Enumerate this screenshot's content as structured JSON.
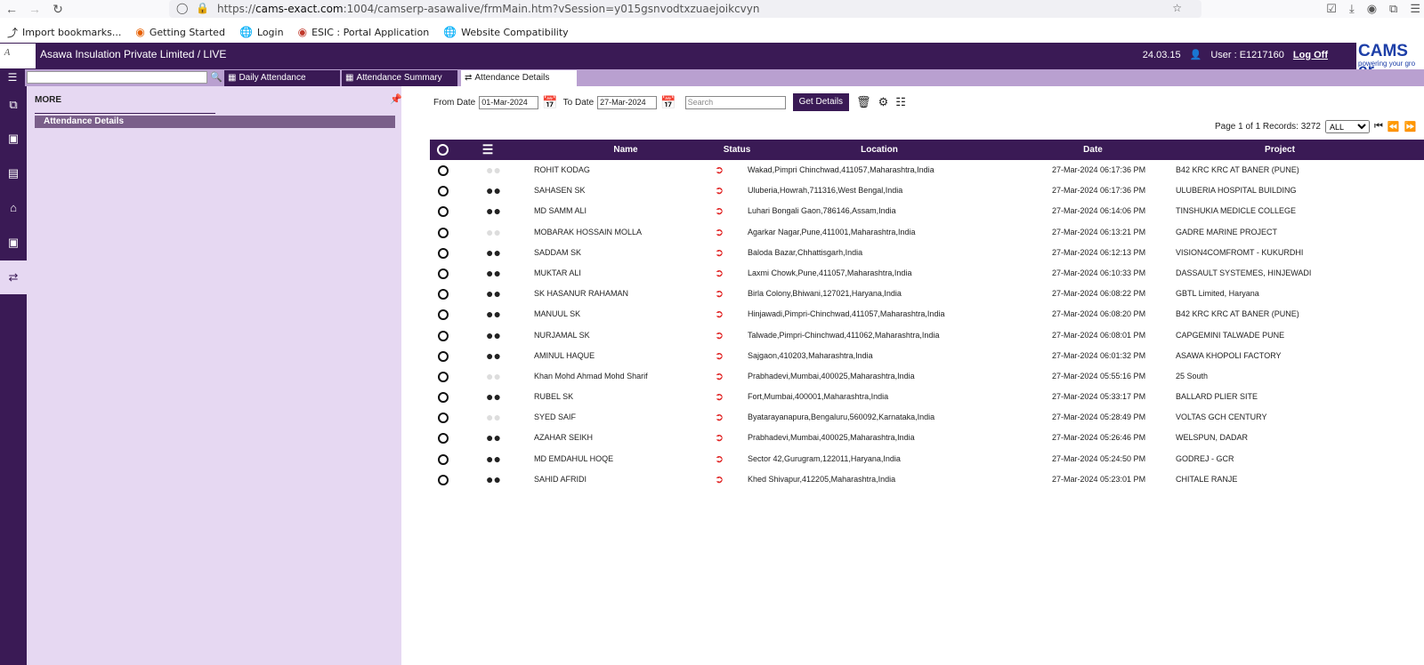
{
  "browser": {
    "url_prefix": "https://",
    "url_host": "cams-exact.com",
    "url_rest": ":1004/camserp-asawalive/frmMain.htm?vSession=y015gsnvodtxzuaejoikcvyn",
    "bookmarks": [
      "Import bookmarks...",
      "Getting Started",
      "Login",
      "ESIC : Portal Application",
      "Website Compatibility"
    ]
  },
  "header": {
    "company": "Asawa Insulation Private Limited  / LIVE",
    "version": "24.03.15",
    "user": "User : E1217160",
    "logoff": "Log Off",
    "brand": "CAMS er",
    "tagline": "powering your gro"
  },
  "tabs": [
    {
      "label": "Daily Attendance"
    },
    {
      "label": "Attendance Summary"
    },
    {
      "label": "Attendance Details"
    }
  ],
  "sidebar": {
    "title": "MORE",
    "item": "Attendance Details"
  },
  "filters": {
    "from_label": "From Date",
    "from_value": "01-Mar-2024",
    "to_label": "To Date",
    "to_value": "27-Mar-2024",
    "search_placeholder": "Search",
    "get_details": "Get Details"
  },
  "pager": {
    "text": "Page 1 of 1 Records: 3272",
    "size_option": "ALL"
  },
  "table": {
    "columns": [
      "Name",
      "Status",
      "Location",
      "Date",
      "Project"
    ],
    "rows": [
      {
        "name": "ROHIT KODAG",
        "group_dim": true,
        "location": "Wakad,Pimpri Chinchwad,411057,Maharashtra,India",
        "date": "27-Mar-2024 06:17:36 PM",
        "project": "B42 KRC KRC AT BANER (PUNE)"
      },
      {
        "name": "SAHASEN SK",
        "group_dim": false,
        "location": "Uluberia,Howrah,711316,West Bengal,India",
        "date": "27-Mar-2024 06:17:36 PM",
        "project": "ULUBERIA HOSPITAL BUILDING"
      },
      {
        "name": "MD SAMM ALI",
        "group_dim": false,
        "location": "Luhari Bongali Gaon,786146,Assam,India",
        "date": "27-Mar-2024 06:14:06 PM",
        "project": "TINSHUKIA MEDICLE COLLEGE"
      },
      {
        "name": "MOBARAK HOSSAIN MOLLA",
        "group_dim": true,
        "location": "Agarkar Nagar,Pune,411001,Maharashtra,India",
        "date": "27-Mar-2024 06:13:21 PM",
        "project": "GADRE MARINE PROJECT"
      },
      {
        "name": "SADDAM SK",
        "group_dim": false,
        "location": "Baloda Bazar,Chhattisgarh,India",
        "date": "27-Mar-2024 06:12:13 PM",
        "project": "VISION4COMFROMT - KUKURDHI"
      },
      {
        "name": "MUKTAR ALI",
        "group_dim": false,
        "location": "Laxmi Chowk,Pune,411057,Maharashtra,India",
        "date": "27-Mar-2024 06:10:33 PM",
        "project": "DASSAULT SYSTEMES, HINJEWADI"
      },
      {
        "name": "SK HASANUR RAHAMAN",
        "group_dim": false,
        "location": "Birla Colony,Bhiwani,127021,Haryana,India",
        "date": "27-Mar-2024 06:08:22 PM",
        "project": "GBTL Limited, Haryana"
      },
      {
        "name": "MANUUL SK",
        "group_dim": false,
        "location": "Hinjawadi,Pimpri-Chinchwad,411057,Maharashtra,India",
        "date": "27-Mar-2024 06:08:20 PM",
        "project": "B42 KRC KRC AT BANER (PUNE)"
      },
      {
        "name": "NURJAMAL SK",
        "group_dim": false,
        "location": "Talwade,Pimpri-Chinchwad,411062,Maharashtra,India",
        "date": "27-Mar-2024 06:08:01 PM",
        "project": "CAPGEMINI TALWADE PUNE"
      },
      {
        "name": "AMINUL HAQUE",
        "group_dim": false,
        "location": "Sajgaon,410203,Maharashtra,India",
        "date": "27-Mar-2024 06:01:32 PM",
        "project": "ASAWA KHOPOLI FACTORY"
      },
      {
        "name": "Khan Mohd Ahmad Mohd Sharif",
        "group_dim": true,
        "location": "Prabhadevi,Mumbai,400025,Maharashtra,India",
        "date": "27-Mar-2024 05:55:16 PM",
        "project": "25 South"
      },
      {
        "name": "RUBEL SK",
        "group_dim": false,
        "location": "Fort,Mumbai,400001,Maharashtra,India",
        "date": "27-Mar-2024 05:33:17 PM",
        "project": "BALLARD PLIER SITE"
      },
      {
        "name": "SYED SAIF",
        "group_dim": true,
        "location": "Byatarayanapura,Bengaluru,560092,Karnataka,India",
        "date": "27-Mar-2024 05:28:49 PM",
        "project": "VOLTAS GCH CENTURY"
      },
      {
        "name": "AZAHAR SEIKH",
        "group_dim": false,
        "location": "Prabhadevi,Mumbai,400025,Maharashtra,India",
        "date": "27-Mar-2024 05:26:46 PM",
        "project": "WELSPUN, DADAR"
      },
      {
        "name": "MD EMDAHUL HOQE",
        "group_dim": false,
        "location": "Sector 42,Gurugram,122011,Haryana,India",
        "date": "27-Mar-2024 05:24:50 PM",
        "project": "GODREJ - GCR"
      },
      {
        "name": "SAHID AFRIDI",
        "group_dim": false,
        "location": "Khed Shivapur,412205,Maharashtra,India",
        "date": "27-Mar-2024 05:23:01 PM",
        "project": "CHITALE RANJE"
      }
    ]
  }
}
